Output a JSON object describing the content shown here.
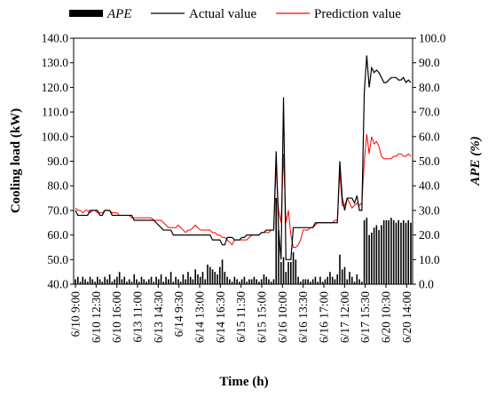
{
  "chart_data": {
    "type": "line",
    "xlabel": "Time (h)",
    "ylabel_left": "Cooling load (kW)",
    "ylabel_right": "APE (%)",
    "ylim_left": [
      40,
      140
    ],
    "ylim_right": [
      0,
      100
    ],
    "yticks_left": [
      "40.0",
      "50.0",
      "60.0",
      "70.0",
      "80.0",
      "90.0",
      "100.0",
      "110.0",
      "120.0",
      "130.0",
      "140.0"
    ],
    "yticks_right": [
      "0.0",
      "10.0",
      "20.0",
      "30.0",
      "40.0",
      "50.0",
      "60.0",
      "70.0",
      "80.0",
      "90.0",
      "100.0"
    ],
    "x_tick_labels": [
      "6/10 9:00",
      "6/10 12:30",
      "6/10 16:00",
      "6/13 11:00",
      "6/13 14:30",
      "6/14 9:30",
      "6/14 13:00",
      "6/14 16:30",
      "6/15 11:30",
      "6/15 15:00",
      "6/16 10:00",
      "6/16 13:30",
      "6/16 17:00",
      "6/17 12:00",
      "6/17 15:30",
      "6/20 10:30",
      "6/20 14:00"
    ],
    "legend": [
      "APE",
      "Actual value",
      "Prediction value"
    ],
    "legend_placement": "top",
    "colors": {
      "ape": "#000000",
      "actual": "#000000",
      "prediction": "#ff0000"
    },
    "series": [
      {
        "name": "Actual value",
        "axis": "left",
        "values": [
          70,
          68,
          68,
          68,
          68,
          68,
          70,
          70,
          70,
          70,
          68,
          68,
          70,
          70,
          70,
          68,
          68,
          68,
          68,
          68,
          68,
          68,
          68,
          68,
          66,
          66,
          66,
          66,
          66,
          66,
          66,
          66,
          66,
          65,
          64,
          63,
          62,
          62,
          62,
          62,
          60,
          60,
          60,
          60,
          60,
          60,
          60,
          60,
          60,
          60,
          60,
          60,
          60,
          60,
          60,
          60,
          58,
          58,
          58,
          58,
          56,
          56,
          59,
          59,
          59,
          58,
          58,
          58,
          59,
          59,
          60,
          60,
          60,
          60,
          60,
          60,
          61,
          61,
          62,
          62,
          62,
          62,
          94,
          62,
          50,
          116,
          50,
          50,
          50,
          63,
          63,
          63,
          63,
          63,
          63,
          63,
          63,
          63,
          65,
          65,
          65,
          65,
          65,
          65,
          65,
          65,
          65,
          65,
          90,
          75,
          70,
          75,
          75,
          75,
          73,
          76,
          70,
          70,
          118,
          133,
          120,
          128,
          126,
          127,
          126,
          124,
          122,
          122,
          123,
          124,
          124,
          124,
          123,
          123,
          124,
          122,
          123,
          122
        ]
      },
      {
        "name": "Prediction value",
        "axis": "left",
        "values": [
          71,
          70,
          70,
          69,
          70,
          70,
          69,
          70,
          70,
          69,
          69,
          69,
          70,
          70,
          70,
          69,
          69,
          69,
          68,
          68,
          68,
          68,
          68,
          67,
          67,
          67,
          67,
          67,
          67,
          67,
          67,
          67,
          66,
          66,
          66,
          66,
          65,
          64,
          63,
          63,
          63,
          63,
          64,
          63,
          62,
          61,
          62,
          62,
          63,
          64,
          63,
          62,
          62,
          62,
          62,
          62,
          61,
          61,
          60,
          60,
          59,
          59,
          58,
          57,
          56,
          58,
          58,
          58,
          58,
          58,
          58,
          59,
          60,
          60,
          60,
          60,
          61,
          61,
          61,
          61,
          62,
          62,
          88,
          70,
          65,
          93,
          65,
          70,
          60,
          55,
          55,
          56,
          58,
          62,
          62,
          62,
          63,
          63,
          64,
          65,
          65,
          65,
          65,
          65,
          65,
          65,
          66,
          66,
          86,
          72,
          72,
          75,
          73,
          71,
          72,
          73,
          72,
          73,
          90,
          101,
          93,
          100,
          97,
          98,
          96,
          92,
          91,
          91,
          91,
          91,
          92,
          92,
          93,
          93,
          92,
          92,
          93,
          92
        ]
      },
      {
        "name": "APE",
        "axis": "right",
        "type": "bar",
        "values": [
          2,
          3,
          1,
          3,
          2,
          1,
          3,
          2,
          1,
          3,
          2,
          1,
          3,
          2,
          4,
          1,
          2,
          3,
          5,
          2,
          3,
          1,
          2,
          1,
          4,
          2,
          1,
          3,
          2,
          1,
          2,
          3,
          1,
          3,
          2,
          4,
          1,
          3,
          2,
          5,
          1,
          3,
          2,
          1,
          4,
          2,
          5,
          3,
          2,
          6,
          4,
          3,
          5,
          2,
          8,
          7,
          6,
          5,
          4,
          7,
          10,
          5,
          3,
          2,
          1,
          3,
          2,
          1,
          2,
          3,
          1,
          2,
          2,
          3,
          2,
          1,
          2,
          4,
          3,
          2,
          1,
          2,
          35,
          22,
          9,
          11,
          5,
          9,
          9,
          13,
          10,
          3,
          1,
          2,
          2,
          2,
          1,
          2,
          3,
          1,
          3,
          1,
          2,
          3,
          5,
          3,
          2,
          4,
          12,
          6,
          7,
          2,
          5,
          3,
          1,
          4,
          2,
          1,
          26,
          27,
          20,
          21,
          23,
          24,
          22,
          24,
          26,
          26,
          26,
          27,
          26,
          25,
          26,
          25,
          26,
          25,
          26,
          25
        ]
      }
    ]
  }
}
